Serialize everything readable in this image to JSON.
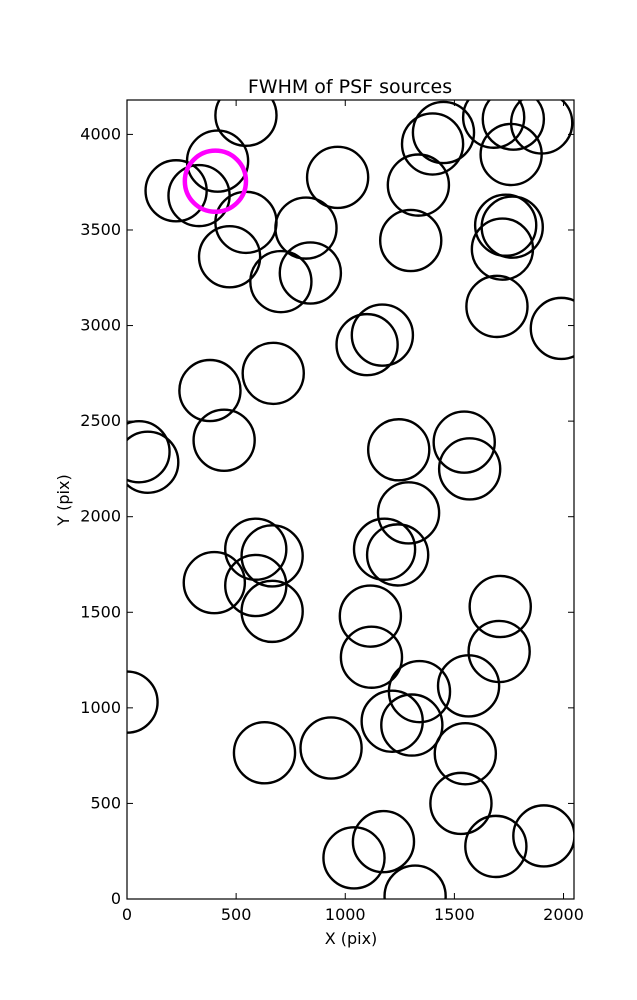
{
  "chart_data": {
    "type": "scatter",
    "title": "FWHM of PSF sources",
    "xlabel": "X (pix)",
    "ylabel": "Y (pix)",
    "xlim": [
      0,
      2048
    ],
    "ylim": [
      0,
      4180
    ],
    "xticks": [
      0,
      500,
      1000,
      1500,
      2000
    ],
    "yticks": [
      0,
      500,
      1000,
      1500,
      2000,
      2500,
      3000,
      3500,
      4000
    ],
    "grid": false,
    "marker": "open circle",
    "marker_color": "#000000",
    "highlight_color": "#ff00ff",
    "series": [
      {
        "points": [
          [
            545,
            4100
          ],
          [
            1450,
            4010
          ],
          [
            1400,
            3950
          ],
          [
            1680,
            4090
          ],
          [
            1770,
            4080
          ],
          [
            1900,
            4060
          ],
          [
            1760,
            3895
          ],
          [
            415,
            3860
          ],
          [
            225,
            3705
          ],
          [
            330,
            3680
          ],
          [
            545,
            3540
          ],
          [
            470,
            3360
          ],
          [
            705,
            3230
          ],
          [
            965,
            3775
          ],
          [
            820,
            3510
          ],
          [
            840,
            3275
          ],
          [
            1335,
            3735
          ],
          [
            1300,
            3445
          ],
          [
            1735,
            3525
          ],
          [
            1765,
            3515
          ],
          [
            1720,
            3400
          ],
          [
            1695,
            3100
          ],
          [
            1990,
            2985
          ],
          [
            1100,
            2900
          ],
          [
            1170,
            2950
          ],
          [
            670,
            2750
          ],
          [
            380,
            2660
          ],
          [
            445,
            2400
          ],
          [
            55,
            2340
          ],
          [
            95,
            2285
          ],
          [
            1245,
            2350
          ],
          [
            1545,
            2390
          ],
          [
            1570,
            2250
          ],
          [
            1290,
            2020
          ],
          [
            1180,
            1830
          ],
          [
            1240,
            1800
          ],
          [
            590,
            1830
          ],
          [
            665,
            1795
          ],
          [
            400,
            1655
          ],
          [
            590,
            1640
          ],
          [
            665,
            1505
          ],
          [
            1115,
            1480
          ],
          [
            1120,
            1265
          ],
          [
            1710,
            1530
          ],
          [
            1705,
            1295
          ],
          [
            1565,
            1115
          ],
          [
            1340,
            1085
          ],
          [
            1215,
            930
          ],
          [
            1305,
            910
          ],
          [
            935,
            790
          ],
          [
            630,
            765
          ],
          [
            1550,
            760
          ],
          [
            1530,
            500
          ],
          [
            0,
            1030
          ],
          [
            1040,
            215
          ],
          [
            1175,
            300
          ],
          [
            1320,
            15
          ],
          [
            1690,
            275
          ],
          [
            1910,
            330
          ]
        ]
      }
    ],
    "highlight": [
      [
        405,
        3755
      ]
    ],
    "circle_radius": 140
  }
}
